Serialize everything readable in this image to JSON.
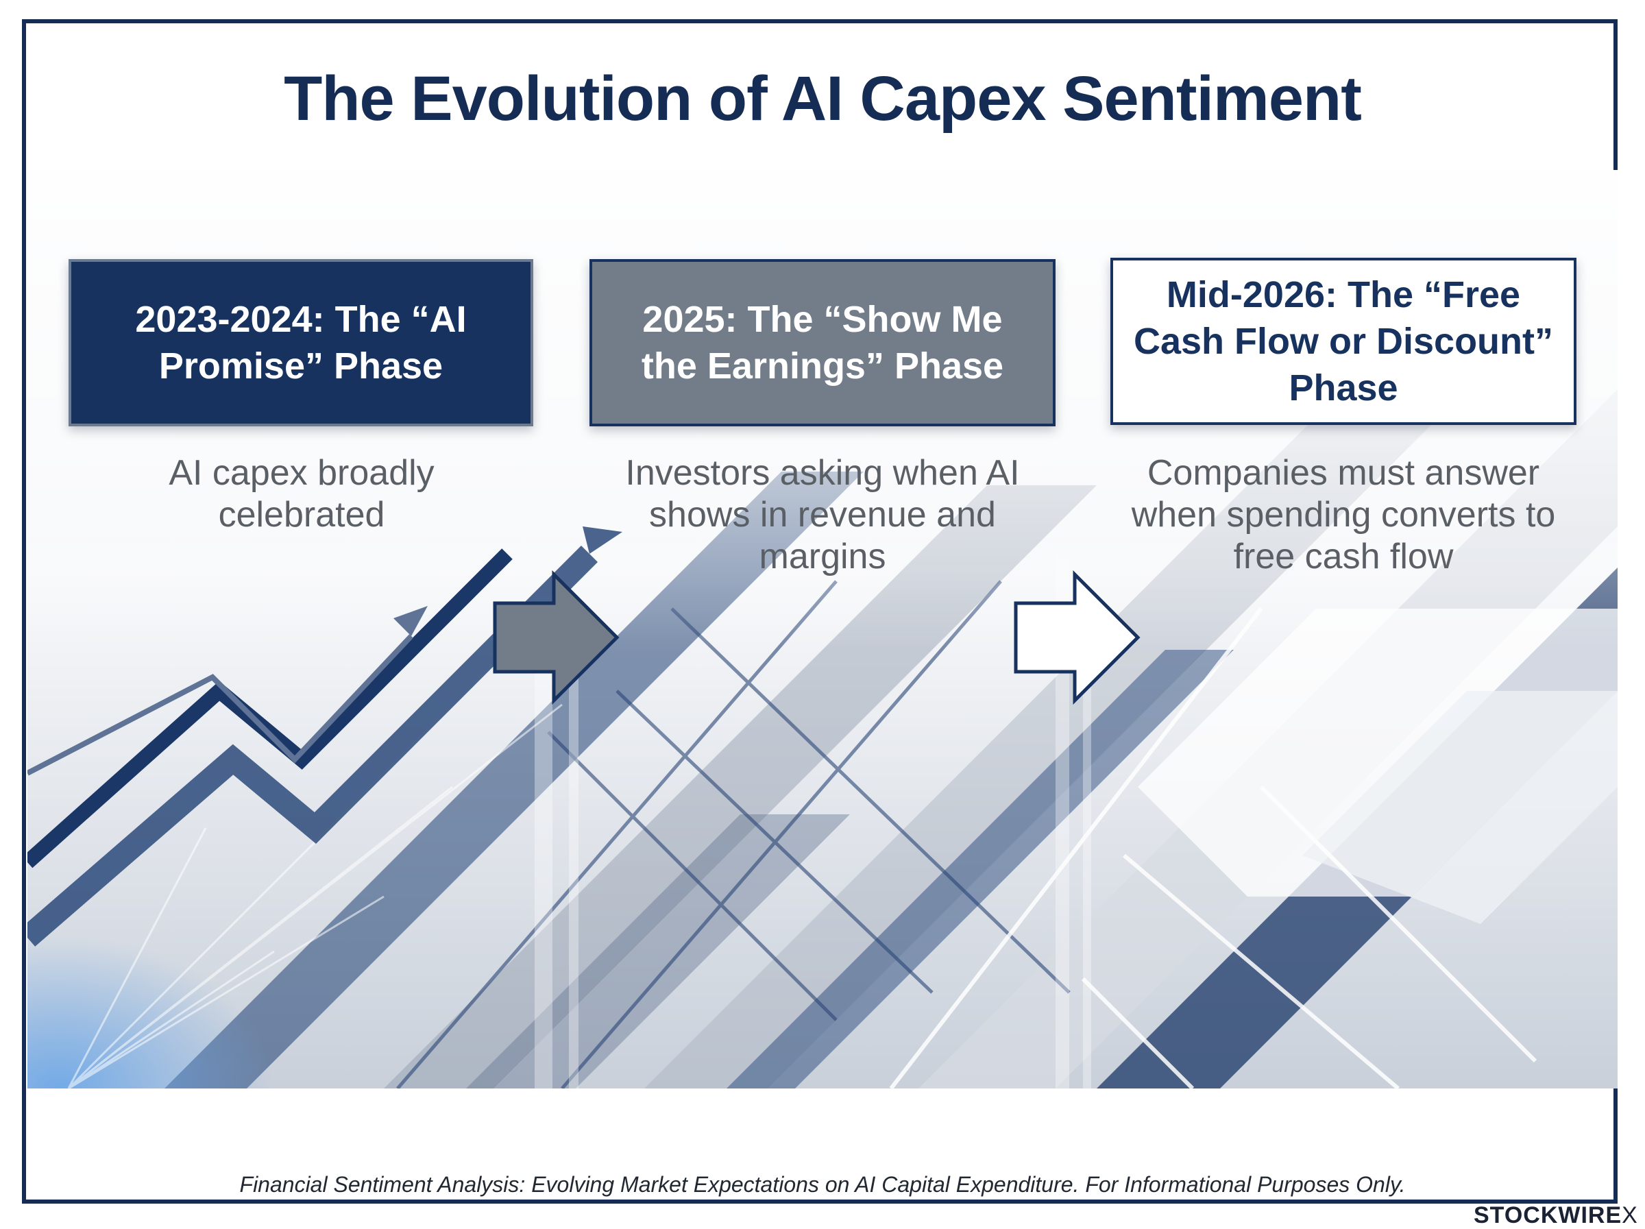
{
  "title": "The Evolution of AI Capex Sentiment",
  "phases": [
    {
      "heading": "2023-2024: The “AI Promise” Phase",
      "description": "AI capex broadly celebrated"
    },
    {
      "heading": "2025: The “Show Me the Earnings” Phase",
      "description": "Investors asking when AI shows in revenue and margins"
    },
    {
      "heading": "Mid-2026: The “Free Cash Flow or Discount” Phase",
      "description": "Companies must answer when spending converts to free cash flow"
    }
  ],
  "footer": "Financial Sentiment Analysis: Evolving Market Expectations on AI Capital Expenditure. For Informational Purposes Only.",
  "brand": {
    "name": "STOCKWIRE",
    "mark": "X"
  },
  "colors": {
    "navy": "#17325f",
    "slate": "#737d89",
    "white": "#ffffff"
  }
}
